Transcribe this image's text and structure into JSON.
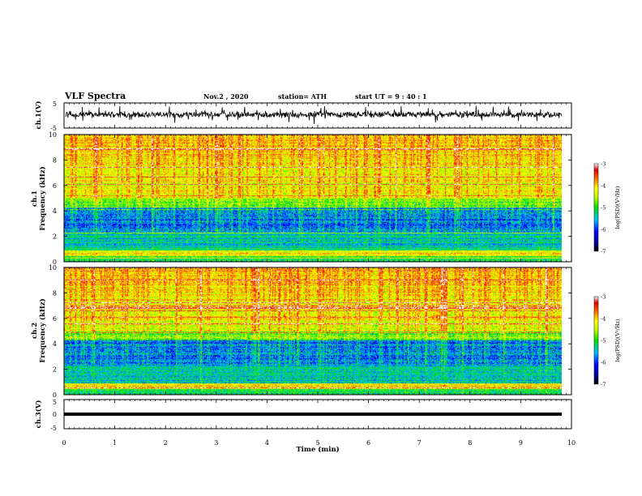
{
  "header": {
    "title": "VLF Spectra",
    "date": "Nov.2 , 2020",
    "station": "station= ATH",
    "start_time": "start UT = 9 : 40 : 1"
  },
  "chart_data": [
    {
      "type": "line",
      "panel": "ch1-waveform",
      "ylabel": "ch.1(V)",
      "ylim": [
        -5,
        5
      ],
      "yticks": [
        "5",
        "-5"
      ],
      "xlim": [
        0,
        10
      ]
    },
    {
      "type": "heatmap",
      "panel": "ch1-spectrogram",
      "ylabel": "ch.1",
      "ylabel2": "Frequency (kHz)",
      "ylim": [
        0,
        10
      ],
      "yticks": [
        "0",
        "2",
        "4",
        "6",
        "8",
        "10"
      ],
      "xlim": [
        0,
        10
      ],
      "colorbar": {
        "label": "log(PSD)(V²/Hz)",
        "ticks": [
          "-3",
          "-4",
          "-5",
          "-6",
          "-7"
        ],
        "range": [
          -7,
          -3
        ]
      }
    },
    {
      "type": "heatmap",
      "panel": "ch2-spectrogram",
      "ylabel": "ch.2",
      "ylabel2": "Frequency (kHz)",
      "ylim": [
        0,
        10
      ],
      "yticks": [
        "0",
        "2",
        "4",
        "6",
        "8",
        "10"
      ],
      "xlim": [
        0,
        10
      ],
      "colorbar": {
        "label": "log(PSD)(V²/Hz)",
        "ticks": [
          "-3",
          "-4",
          "-5",
          "-6",
          "-7"
        ],
        "range": [
          -7,
          -3
        ]
      }
    },
    {
      "type": "line",
      "panel": "ch3-waveform",
      "ylabel": "ch.3(V)",
      "ylim": [
        -5,
        5
      ],
      "yticks": [
        "5",
        "0",
        "-5"
      ],
      "xlim": [
        0,
        10
      ],
      "xlabel": "Time (min)",
      "xticks": [
        "0",
        "1",
        "2",
        "3",
        "4",
        "5",
        "6",
        "7",
        "8",
        "9",
        "10"
      ]
    }
  ],
  "colors": {
    "colormap": [
      "#000070",
      "#0000e0",
      "#0080ff",
      "#00e0e0",
      "#00d000",
      "#f0f000",
      "#ff8000",
      "#e00000",
      "#ffffff"
    ],
    "trace": "#000000"
  }
}
